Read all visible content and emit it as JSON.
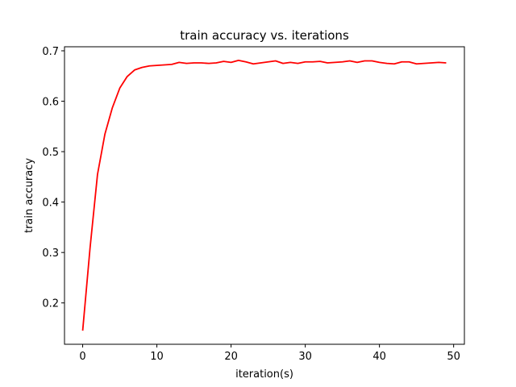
{
  "chart_data": {
    "type": "line",
    "title": "train accuracy vs. iterations",
    "xlabel": "iteration(s)",
    "ylabel": "train accuracy",
    "xlim": [
      -2.45,
      51.45
    ],
    "ylim": [
      0.118,
      0.708
    ],
    "xticks": [
      0,
      10,
      20,
      30,
      40,
      50
    ],
    "yticks": [
      0.2,
      0.3,
      0.4,
      0.5,
      0.6,
      0.7
    ],
    "xtick_labels": [
      "0",
      "10",
      "20",
      "30",
      "40",
      "50"
    ],
    "ytick_labels": [
      "0.2",
      "0.3",
      "0.4",
      "0.5",
      "0.6",
      "0.7"
    ],
    "grid": false,
    "series": [
      {
        "color": "#ff0000",
        "x": [
          0,
          1,
          2,
          3,
          4,
          5,
          6,
          7,
          8,
          9,
          10,
          11,
          12,
          13,
          14,
          15,
          16,
          17,
          18,
          19,
          20,
          21,
          22,
          23,
          24,
          25,
          26,
          27,
          28,
          29,
          30,
          31,
          32,
          33,
          34,
          35,
          36,
          37,
          38,
          39,
          40,
          41,
          42,
          43,
          44,
          45,
          46,
          47,
          48,
          49
        ],
        "y": [
          0.145,
          0.31,
          0.455,
          0.535,
          0.587,
          0.626,
          0.649,
          0.662,
          0.667,
          0.67,
          0.671,
          0.672,
          0.673,
          0.677,
          0.675,
          0.676,
          0.676,
          0.675,
          0.676,
          0.679,
          0.677,
          0.681,
          0.678,
          0.674,
          0.676,
          0.678,
          0.68,
          0.675,
          0.677,
          0.675,
          0.678,
          0.678,
          0.679,
          0.676,
          0.677,
          0.678,
          0.68,
          0.677,
          0.68,
          0.68,
          0.677,
          0.675,
          0.674,
          0.678,
          0.678,
          0.674,
          0.675,
          0.676,
          0.677,
          0.676
        ]
      }
    ]
  }
}
